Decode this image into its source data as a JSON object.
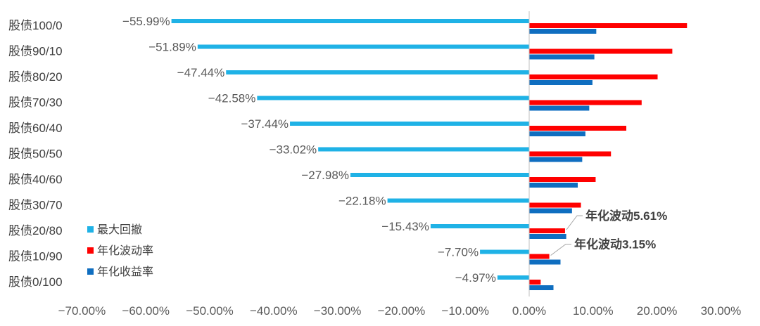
{
  "chart_data": {
    "type": "bar",
    "orientation": "horizontal",
    "categories": [
      "股债100/0",
      "股债90/10",
      "股债80/20",
      "股债70/30",
      "股债60/40",
      "股债50/50",
      "股债40/60",
      "股债30/70",
      "股债20/80",
      "股债10/90",
      "股债0/100"
    ],
    "series": [
      {
        "name": "最大回撤",
        "color": "#1FB2E6",
        "values": [
          -55.99,
          -51.89,
          -47.44,
          -42.58,
          -37.44,
          -33.02,
          -27.98,
          -22.18,
          -15.43,
          -7.7,
          -4.97
        ],
        "labels": [
          "−55.99%",
          "−51.89%",
          "−47.44%",
          "−42.58%",
          "−37.44%",
          "−33.02%",
          "−27.98%",
          "−22.18%",
          "−15.43%",
          "−7.70%",
          "−4.97%"
        ]
      },
      {
        "name": "年化波动率",
        "color": "#FF0000",
        "values": [
          24.7,
          22.4,
          20.1,
          17.6,
          15.2,
          12.8,
          10.4,
          8.1,
          5.61,
          3.15,
          1.8
        ]
      },
      {
        "name": "年化收益率",
        "color": "#0F6EC0",
        "values": [
          10.5,
          10.2,
          9.9,
          9.4,
          8.8,
          8.3,
          7.6,
          6.7,
          5.8,
          4.9,
          3.8
        ]
      }
    ],
    "xlim": [
      -70,
      30
    ],
    "x_ticks": [
      -70,
      -60,
      -50,
      -40,
      -30,
      -20,
      -10,
      0,
      10,
      20,
      30
    ],
    "x_tick_labels": [
      "−70.00%",
      "−60.00%",
      "−50.00%",
      "−40.00%",
      "−30.00%",
      "−20.00%",
      "−10.00%",
      "0.00%",
      "10.00%",
      "20.00%",
      "30.00%"
    ],
    "annotations": [
      {
        "text": "年化波动5.61%",
        "category": "股债20/80"
      },
      {
        "text": "年化波动3.15%",
        "category": "股债10/90"
      }
    ],
    "legend": {
      "position": "bottom-left"
    },
    "grid": false
  }
}
